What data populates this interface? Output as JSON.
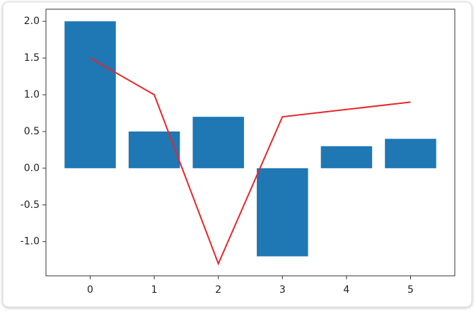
{
  "chart_data": {
    "type": "combo",
    "x": [
      0,
      1,
      2,
      3,
      4,
      5
    ],
    "series": [
      {
        "type": "bar",
        "color": "#1f77b4",
        "values": [
          2.0,
          0.5,
          0.7,
          -1.2,
          0.3,
          0.4
        ]
      },
      {
        "type": "line",
        "color": "#e8262a",
        "values": [
          1.5,
          1.0,
          -1.3,
          0.7,
          0.8,
          0.9
        ]
      }
    ],
    "bar_width": 0.8,
    "xlim": [
      -0.69,
      5.69
    ],
    "xticks": [
      0,
      1,
      2,
      3,
      4,
      5
    ],
    "ylim": [
      -1.465,
      2.165
    ],
    "yticks": [
      {
        "value": -1.0,
        "label": "-1.0"
      },
      -0.5,
      {
        "value": 0.0,
        "label": "0.0"
      },
      0.5,
      {
        "value": 1.0,
        "label": "1.0"
      },
      1.5,
      {
        "value": 2.0,
        "label": "2.0"
      }
    ],
    "grid": false
  }
}
